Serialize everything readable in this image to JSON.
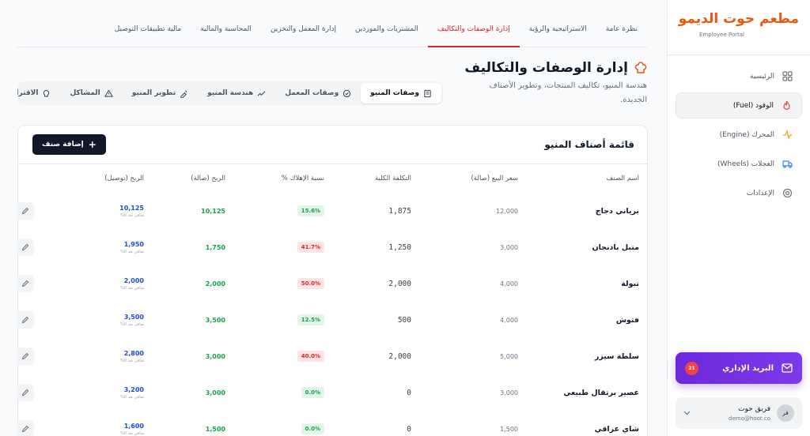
{
  "sidebar": {
    "brand": "مطعم حوت الديمو",
    "subtitle": "Employee Portal",
    "nav": [
      "الرئيسية",
      "الوقود (Fuel)",
      "المحرك (Engine)",
      "العجلات (Wheels)",
      "الإعدادات"
    ],
    "mail": {
      "label": "البريد الإداري",
      "badge": "21"
    },
    "user": {
      "avatar": "فر",
      "name": "فريق حوت",
      "email": "demo@hoot.co"
    }
  },
  "top_tabs": [
    "نظرة عامة",
    "الاستراتيجية والرؤية",
    "إدارة الوصفات والتكاليف",
    "المشتريات والموردين",
    "إدارة المعمل والتخزين",
    "المحاسبة والمالية",
    "مالية تطبيقات التوصيل"
  ],
  "header": {
    "title": "إدارة الوصفات والتكاليف",
    "description": "هندسة المنيو، تكاليف المنتجات، وتطوير الأصناف الجديدة."
  },
  "sub_tabs": [
    "وصفات المنيو",
    "وصفات المعمل",
    "هندسة المنيو",
    "تطوير المنيو",
    "المشاكل",
    "الاقتراحات"
  ],
  "card": {
    "title": "قائمة أصناف المنيو",
    "button": "إضافة صنف"
  },
  "table": {
    "columns": [
      "اسم الصنف",
      "سعر البيع (صالة)",
      "التكلفة الكلية",
      "نسبة الإهلاك %",
      "الربح (صالة)",
      "الربح (توصيل)"
    ],
    "rows": [
      {
        "name": "برياني دجاج",
        "price": "12,000",
        "cost": "1,875",
        "waste": "15.6%",
        "waste_color": "#16a34a",
        "profit": "10,125",
        "delivery": "10,125",
        "delivery_note": "صافي بعد 0%"
      },
      {
        "name": "متبل باذنجان",
        "price": "3,000",
        "cost": "1,250",
        "waste": "41.7%",
        "waste_color": "#dc2626",
        "profit": "1,750",
        "delivery": "1,950",
        "delivery_note": "صافي بعد 0%"
      },
      {
        "name": "تبولة",
        "price": "4,000",
        "cost": "2,000",
        "waste": "50.0%",
        "waste_color": "#dc2626",
        "profit": "2,000",
        "delivery": "2,000",
        "delivery_note": "صافي بعد 0%"
      },
      {
        "name": "فتوش",
        "price": "4,000",
        "cost": "500",
        "waste": "12.5%",
        "waste_color": "#16a34a",
        "profit": "3,500",
        "delivery": "3,500",
        "delivery_note": "صافي بعد 0%"
      },
      {
        "name": "سلطة سيزر",
        "price": "5,000",
        "cost": "2,000",
        "waste": "40.0%",
        "waste_color": "#dc2626",
        "profit": "3,000",
        "delivery": "2,800",
        "delivery_note": "صافي بعد 0%"
      },
      {
        "name": "عصير برتقال طبيعي",
        "price": "3,000",
        "cost": "0",
        "waste": "0.0%",
        "waste_color": "#16a34a",
        "profit": "3,000",
        "delivery": "3,200",
        "delivery_note": "صافي بعد 0%"
      },
      {
        "name": "شاي عراقي",
        "price": "1,500",
        "cost": "0",
        "waste": "0.0%",
        "waste_color": "#16a34a",
        "profit": "1,500",
        "delivery": "1,600",
        "delivery_note": "صافي بعد 0%"
      }
    ]
  }
}
